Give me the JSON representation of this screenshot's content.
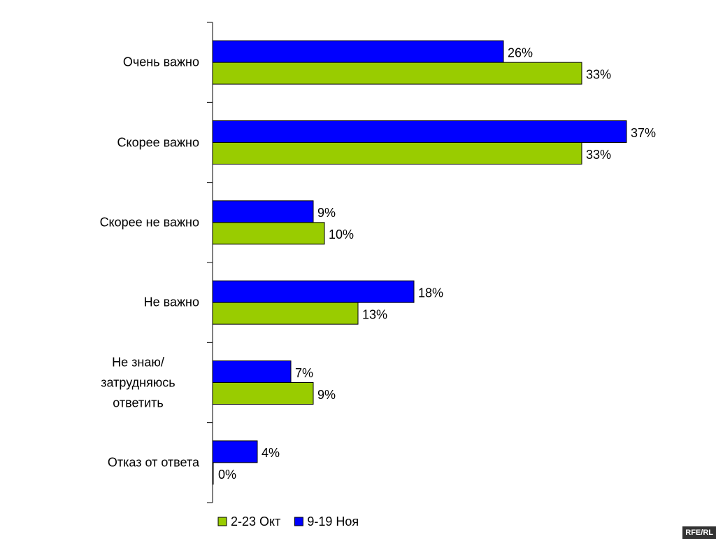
{
  "chart_data": {
    "type": "bar",
    "orientation": "horizontal",
    "categories": [
      "Очень важно",
      "Скорее важно",
      "Скорее не важно",
      "Не важно",
      "Не знаю/затрудняюсь ответить",
      "Отказ от ответа"
    ],
    "series": [
      {
        "name": "2-23 Окт",
        "color": "#99cc00",
        "values": [
          33,
          33,
          10,
          13,
          9,
          0
        ],
        "value_labels": [
          "33%",
          "33%",
          "10%",
          "13%",
          "9%",
          "0%"
        ]
      },
      {
        "name": "9-19 Ноя",
        "color": "#0000ff",
        "values": [
          26,
          37,
          9,
          18,
          7,
          4
        ],
        "value_labels": [
          "26%",
          "37%",
          "9%",
          "18%",
          "7%",
          "4%"
        ]
      }
    ],
    "legend": "bottom",
    "watermark": "RFE/RL"
  }
}
